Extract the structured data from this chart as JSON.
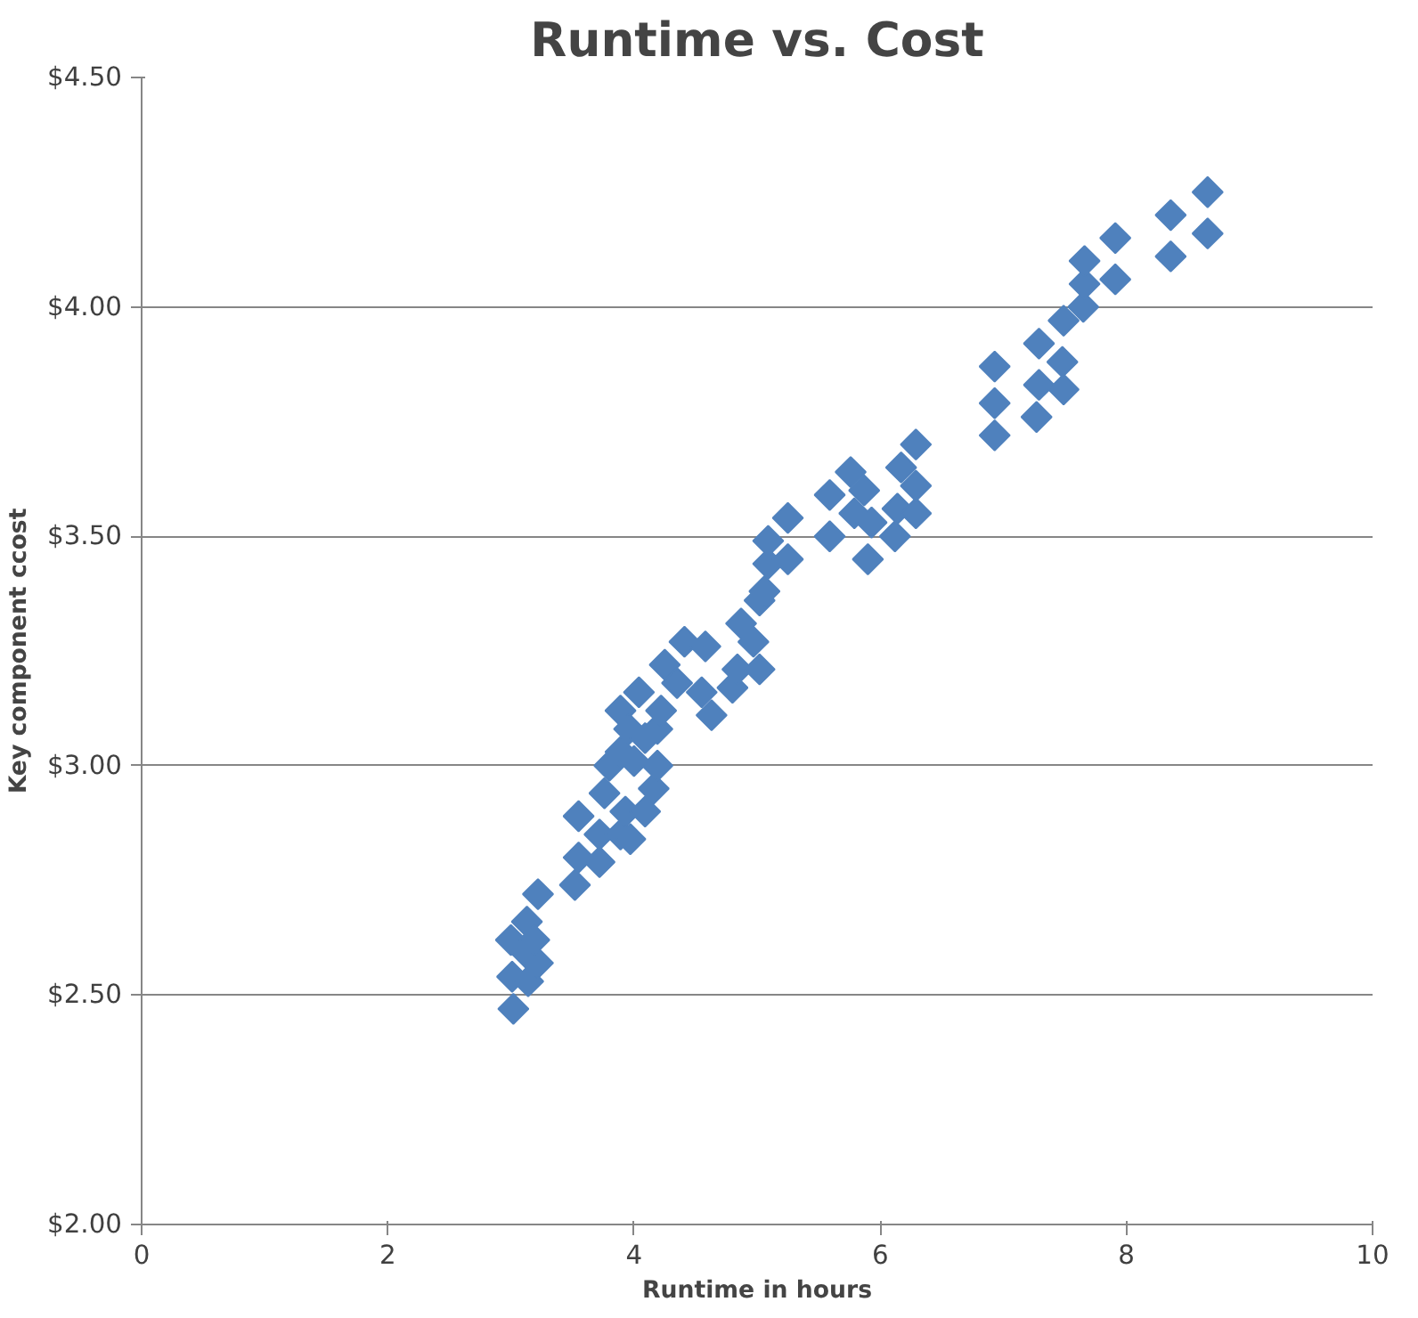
{
  "chart_data": {
    "type": "scatter",
    "title": "Runtime vs. Cost",
    "xlabel": "Runtime in hours",
    "ylabel": "Key component ccost",
    "xlim": [
      0,
      10
    ],
    "xticks": [
      0,
      2,
      4,
      6,
      8,
      10
    ],
    "ylim": [
      2.0,
      4.5
    ],
    "yticks": [
      {
        "value": 2.0,
        "label": "$2.00"
      },
      {
        "value": 2.5,
        "label": "$2.50"
      },
      {
        "value": 3.0,
        "label": "$3.00"
      },
      {
        "value": 3.5,
        "label": "$3.50"
      },
      {
        "value": 4.0,
        "label": "$4.00"
      },
      {
        "value": 4.5,
        "label": "$4.50"
      }
    ],
    "grid": "y",
    "marker": "diamond",
    "series": [
      {
        "color": "#4f81bd",
        "x": [
          3.02,
          3.01,
          3.0,
          3.13,
          3.14,
          3.22,
          3.13,
          3.19,
          3.22,
          3.52,
          3.55,
          3.55,
          3.72,
          3.72,
          3.76,
          3.8,
          3.89,
          3.89,
          3.89,
          3.93,
          3.97,
          3.96,
          4.0,
          4.04,
          4.09,
          4.09,
          4.16,
          4.19,
          4.19,
          4.22,
          4.25,
          4.35,
          4.41,
          4.55,
          4.58,
          4.63,
          4.8,
          4.84,
          4.87,
          4.97,
          5.02,
          5.02,
          5.06,
          5.09,
          5.09,
          5.25,
          5.25,
          5.59,
          5.59,
          5.76,
          5.79,
          5.87,
          5.9,
          5.93,
          6.12,
          6.14,
          6.17,
          6.29,
          6.29,
          6.29,
          6.93,
          6.93,
          6.93,
          7.27,
          7.29,
          7.29,
          7.48,
          7.49,
          7.49,
          7.65,
          7.66,
          7.66,
          7.91,
          7.91,
          8.36,
          8.36,
          8.66,
          8.66
        ],
        "values": [
          2.47,
          2.54,
          2.62,
          2.59,
          2.53,
          2.57,
          2.66,
          2.62,
          2.72,
          2.74,
          2.89,
          2.8,
          2.79,
          2.85,
          2.94,
          3.0,
          2.85,
          3.03,
          3.12,
          2.9,
          2.84,
          3.08,
          3.01,
          3.16,
          2.9,
          3.06,
          2.95,
          3.0,
          3.08,
          3.12,
          3.22,
          3.18,
          3.27,
          3.16,
          3.26,
          3.11,
          3.17,
          3.21,
          3.31,
          3.27,
          3.21,
          3.36,
          3.38,
          3.44,
          3.49,
          3.45,
          3.54,
          3.5,
          3.59,
          3.64,
          3.55,
          3.6,
          3.45,
          3.53,
          3.5,
          3.56,
          3.65,
          3.55,
          3.61,
          3.7,
          3.72,
          3.79,
          3.87,
          3.76,
          3.83,
          3.92,
          3.88,
          3.82,
          3.97,
          4.0,
          4.05,
          4.1,
          4.06,
          4.15,
          4.11,
          4.2,
          4.16,
          4.25
        ]
      }
    ]
  }
}
